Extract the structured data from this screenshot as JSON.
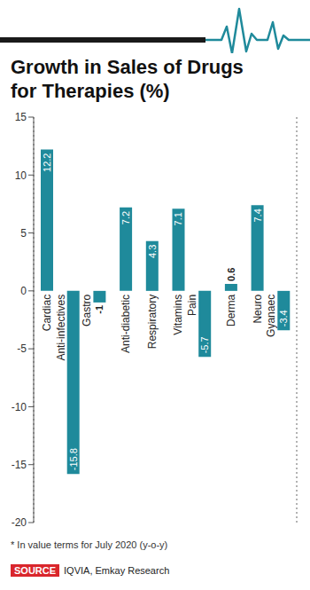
{
  "chart_data": {
    "type": "bar",
    "title": "Growth in Sales of Drugs for Therapies (%)",
    "categories": [
      "Cardiac",
      "Anti-infectives",
      "Gastro",
      "Anti-diabetic",
      "Respiratory",
      "Vitamins",
      "Pain",
      "Derma",
      "Neuro",
      "Gyanaec"
    ],
    "values": [
      12.2,
      -15.8,
      -1,
      7.2,
      4.3,
      7.1,
      -5.7,
      0.6,
      7.4,
      -3.4
    ],
    "color": "#1f8a9b",
    "ylim": [
      -20,
      15
    ],
    "yticks": [
      -20,
      -15,
      -10,
      -5,
      0,
      5,
      10,
      15
    ],
    "grid": true,
    "data_labels": true,
    "annotations": [
      "* In value terms for July 2020 (y-o-y)"
    ],
    "source": {
      "label": "SOURCE",
      "text": "IQVIA, Emkay Research"
    }
  }
}
